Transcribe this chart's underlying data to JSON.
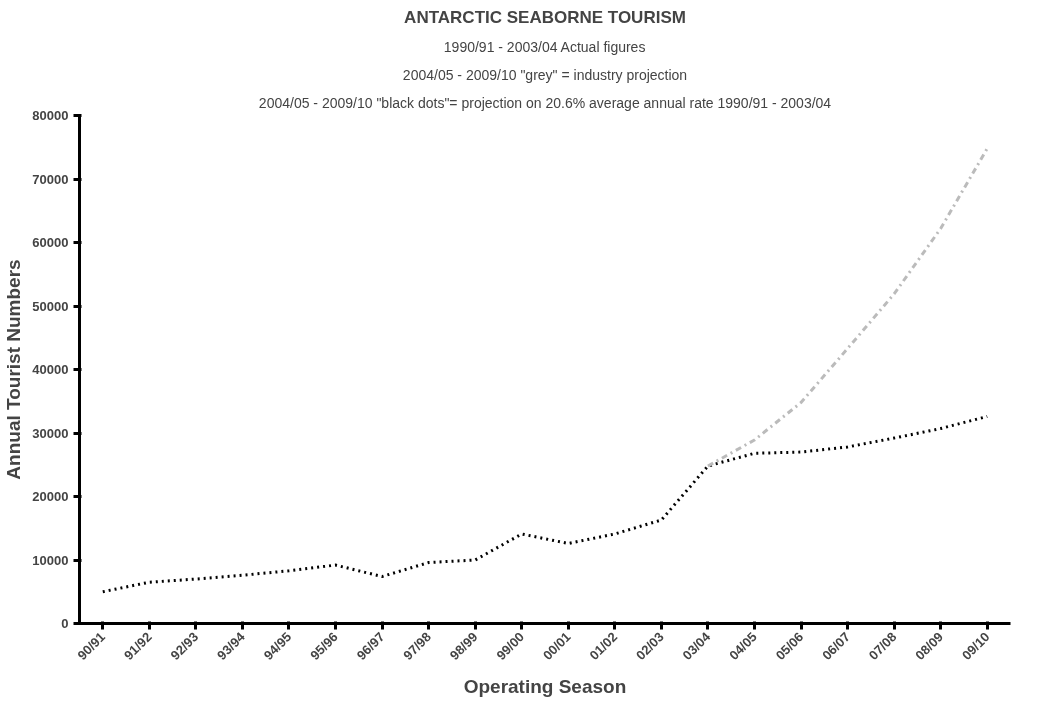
{
  "chart_data": {
    "type": "line",
    "title": "ANTARCTIC SEABORNE TOURISM",
    "subtitle": "1990/91 - 2003/04 Actual figures",
    "annotations": [
      "2004/05 - 2009/10 \"grey\" = industry projection",
      "2004/05 - 2009/10 \"black dots\"= projection on 20.6% average annual rate 1990/91 - 2003/04"
    ],
    "xlabel": "Operating Season",
    "ylabel": "Annual Tourist Numbers",
    "categories": [
      "90/91",
      "91/92",
      "92/93",
      "93/94",
      "94/95",
      "95/96",
      "96/97",
      "97/98",
      "98/99",
      "99/00",
      "00/01",
      "01/02",
      "02/03",
      "03/04",
      "04/05",
      "05/06",
      "06/07",
      "07/08",
      "08/09",
      "09/10"
    ],
    "series": [
      {
        "color": "#000000",
        "line_style": "dotted",
        "values": [
          5000,
          6500,
          7000,
          7600,
          8300,
          9200,
          7400,
          9600,
          10000,
          14100,
          12600,
          14100,
          16300,
          24800,
          26800,
          27000,
          27800,
          29200,
          30700,
          32600
        ]
      },
      {
        "color": "#bbbbbb",
        "line_style": "dashdot",
        "values": [
          null,
          null,
          null,
          null,
          null,
          null,
          null,
          null,
          null,
          null,
          null,
          null,
          null,
          24800,
          28900,
          34800,
          43300,
          51900,
          62200,
          74800
        ]
      }
    ],
    "ylim": [
      0,
      80000
    ],
    "yticks": [
      0,
      10000,
      20000,
      30000,
      40000,
      50000,
      60000,
      70000,
      80000
    ],
    "grid": false
  }
}
